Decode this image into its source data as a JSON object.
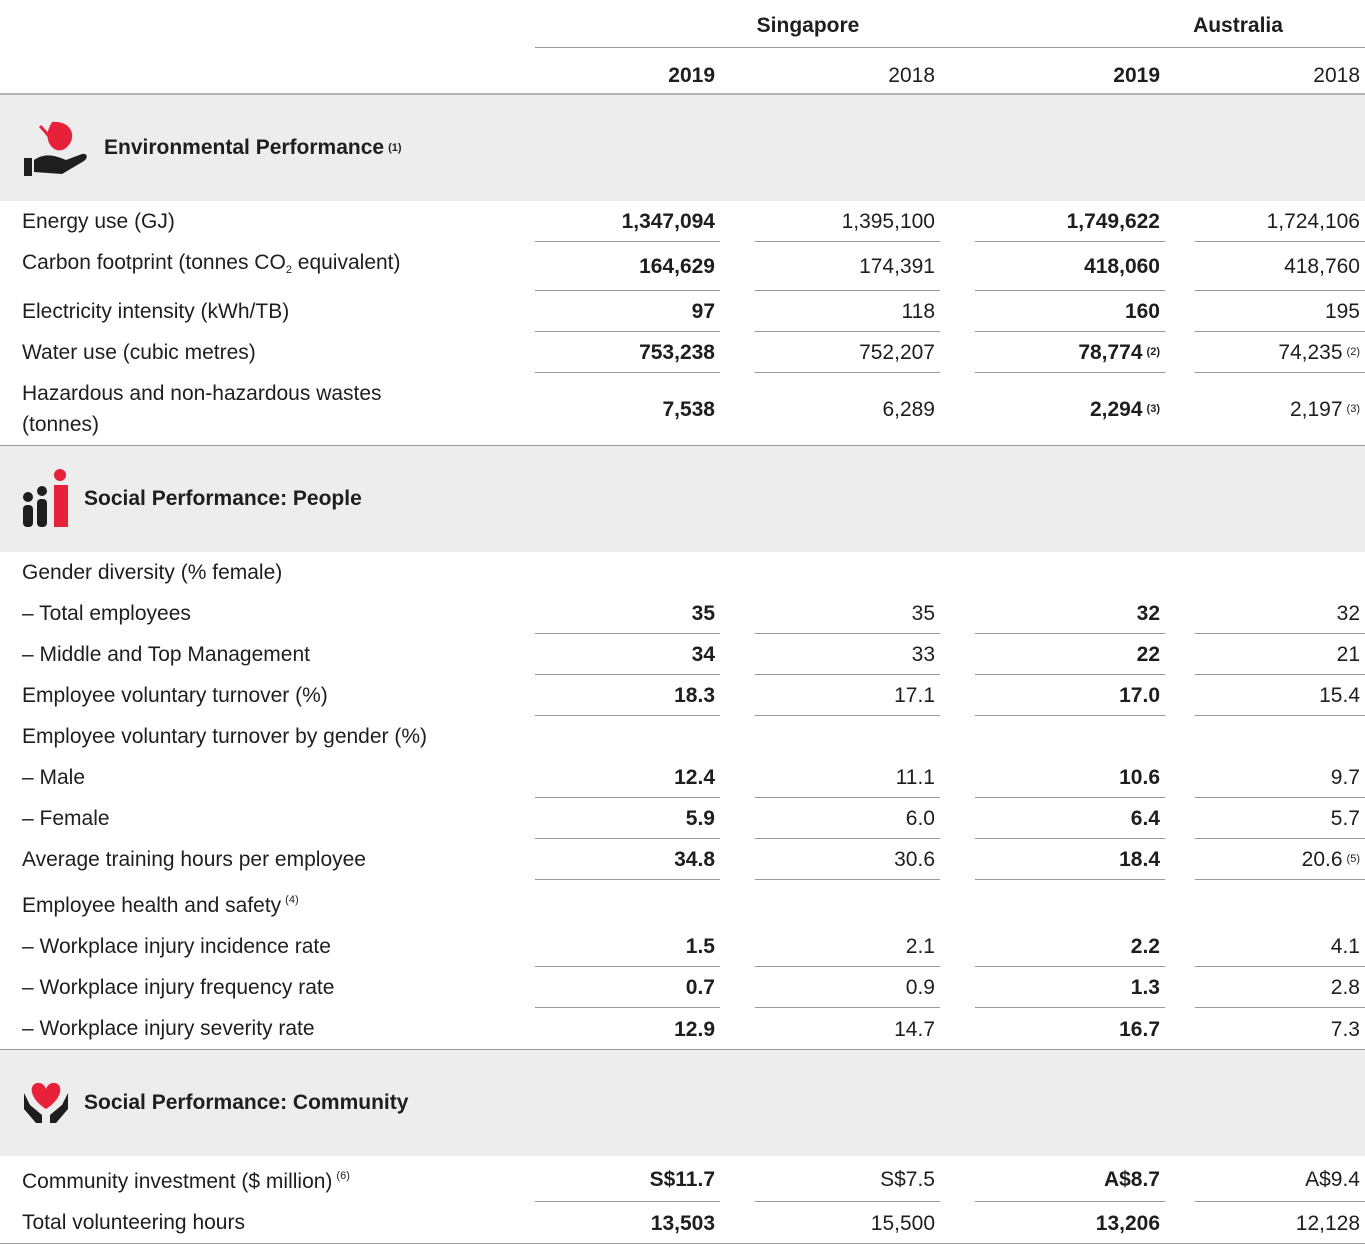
{
  "header": {
    "groups": [
      "Singapore",
      "Australia"
    ],
    "years": [
      "2019",
      "2018",
      "2019",
      "2018"
    ]
  },
  "sections": [
    {
      "title": "Environmental Performance",
      "note": "(1)",
      "rows": [
        {
          "label": "Energy use (GJ)",
          "cells": [
            "1,347,094",
            "1,395,100",
            "1,749,622",
            "1,724,106"
          ]
        },
        {
          "label": "Carbon footprint (tonnes CO",
          "sub": "2",
          "label_end": " equivalent)",
          "cells": [
            "164,629",
            "174,391",
            "418,060",
            "418,760"
          ]
        },
        {
          "label": "Electricity intensity (kWh/TB)",
          "cells": [
            "97",
            "118",
            "160",
            "195"
          ]
        },
        {
          "label": "Water use (cubic metres)",
          "cells": [
            "753,238",
            "752,207",
            {
              "text": "78,774",
              "note": "(2)"
            },
            {
              "text": "74,235",
              "note": "(2)"
            }
          ]
        },
        {
          "label": "Hazardous and non-hazardous wastes (tonnes)",
          "cells": [
            "7,538",
            "6,289",
            {
              "text": "2,294",
              "note": "(3)"
            },
            {
              "text": "2,197",
              "note": "(3)"
            }
          ]
        }
      ]
    },
    {
      "title": "Social Performance: People",
      "rows": [
        {
          "label": "Gender diversity (% female)"
        },
        {
          "label": "– Total employees",
          "cells": [
            "35",
            "35",
            "32",
            "32"
          ]
        },
        {
          "label": "– Middle and Top Management",
          "cells": [
            "34",
            "33",
            "22",
            "21"
          ]
        },
        {
          "label": "Employee voluntary turnover (%)",
          "cells": [
            "18.3",
            "17.1",
            "17.0",
            "15.4"
          ]
        },
        {
          "label": "Employee voluntary turnover by gender (%)"
        },
        {
          "label": "– Male",
          "cells": [
            "12.4",
            "11.1",
            "10.6",
            "9.7"
          ]
        },
        {
          "label": "– Female",
          "cells": [
            "5.9",
            "6.0",
            "6.4",
            "5.7"
          ]
        },
        {
          "label": "Average training hours per employee",
          "cells": [
            "34.8",
            "30.6",
            "18.4",
            {
              "text": "20.6",
              "note": "(5)"
            }
          ]
        },
        {
          "label": "Employee health and safety",
          "note": "(4)"
        },
        {
          "label": "– Workplace injury incidence rate",
          "cells": [
            "1.5",
            "2.1",
            "2.2",
            "4.1"
          ]
        },
        {
          "label": "– Workplace injury frequency rate",
          "cells": [
            "0.7",
            "0.9",
            "1.3",
            "2.8"
          ]
        },
        {
          "label": "– Workplace injury severity rate",
          "cells": [
            "12.9",
            "14.7",
            "16.7",
            "7.3"
          ]
        }
      ]
    },
    {
      "title": "Social Performance: Community",
      "rows": [
        {
          "label": "Community investment ($ million)",
          "note": "(6)",
          "cells": [
            "S$11.7",
            "S$7.5",
            "A$8.7",
            "A$9.4"
          ]
        },
        {
          "label": "Total volunteering hours",
          "cells": [
            "13,503",
            "15,500",
            "13,206",
            "12,128"
          ]
        }
      ]
    }
  ]
}
